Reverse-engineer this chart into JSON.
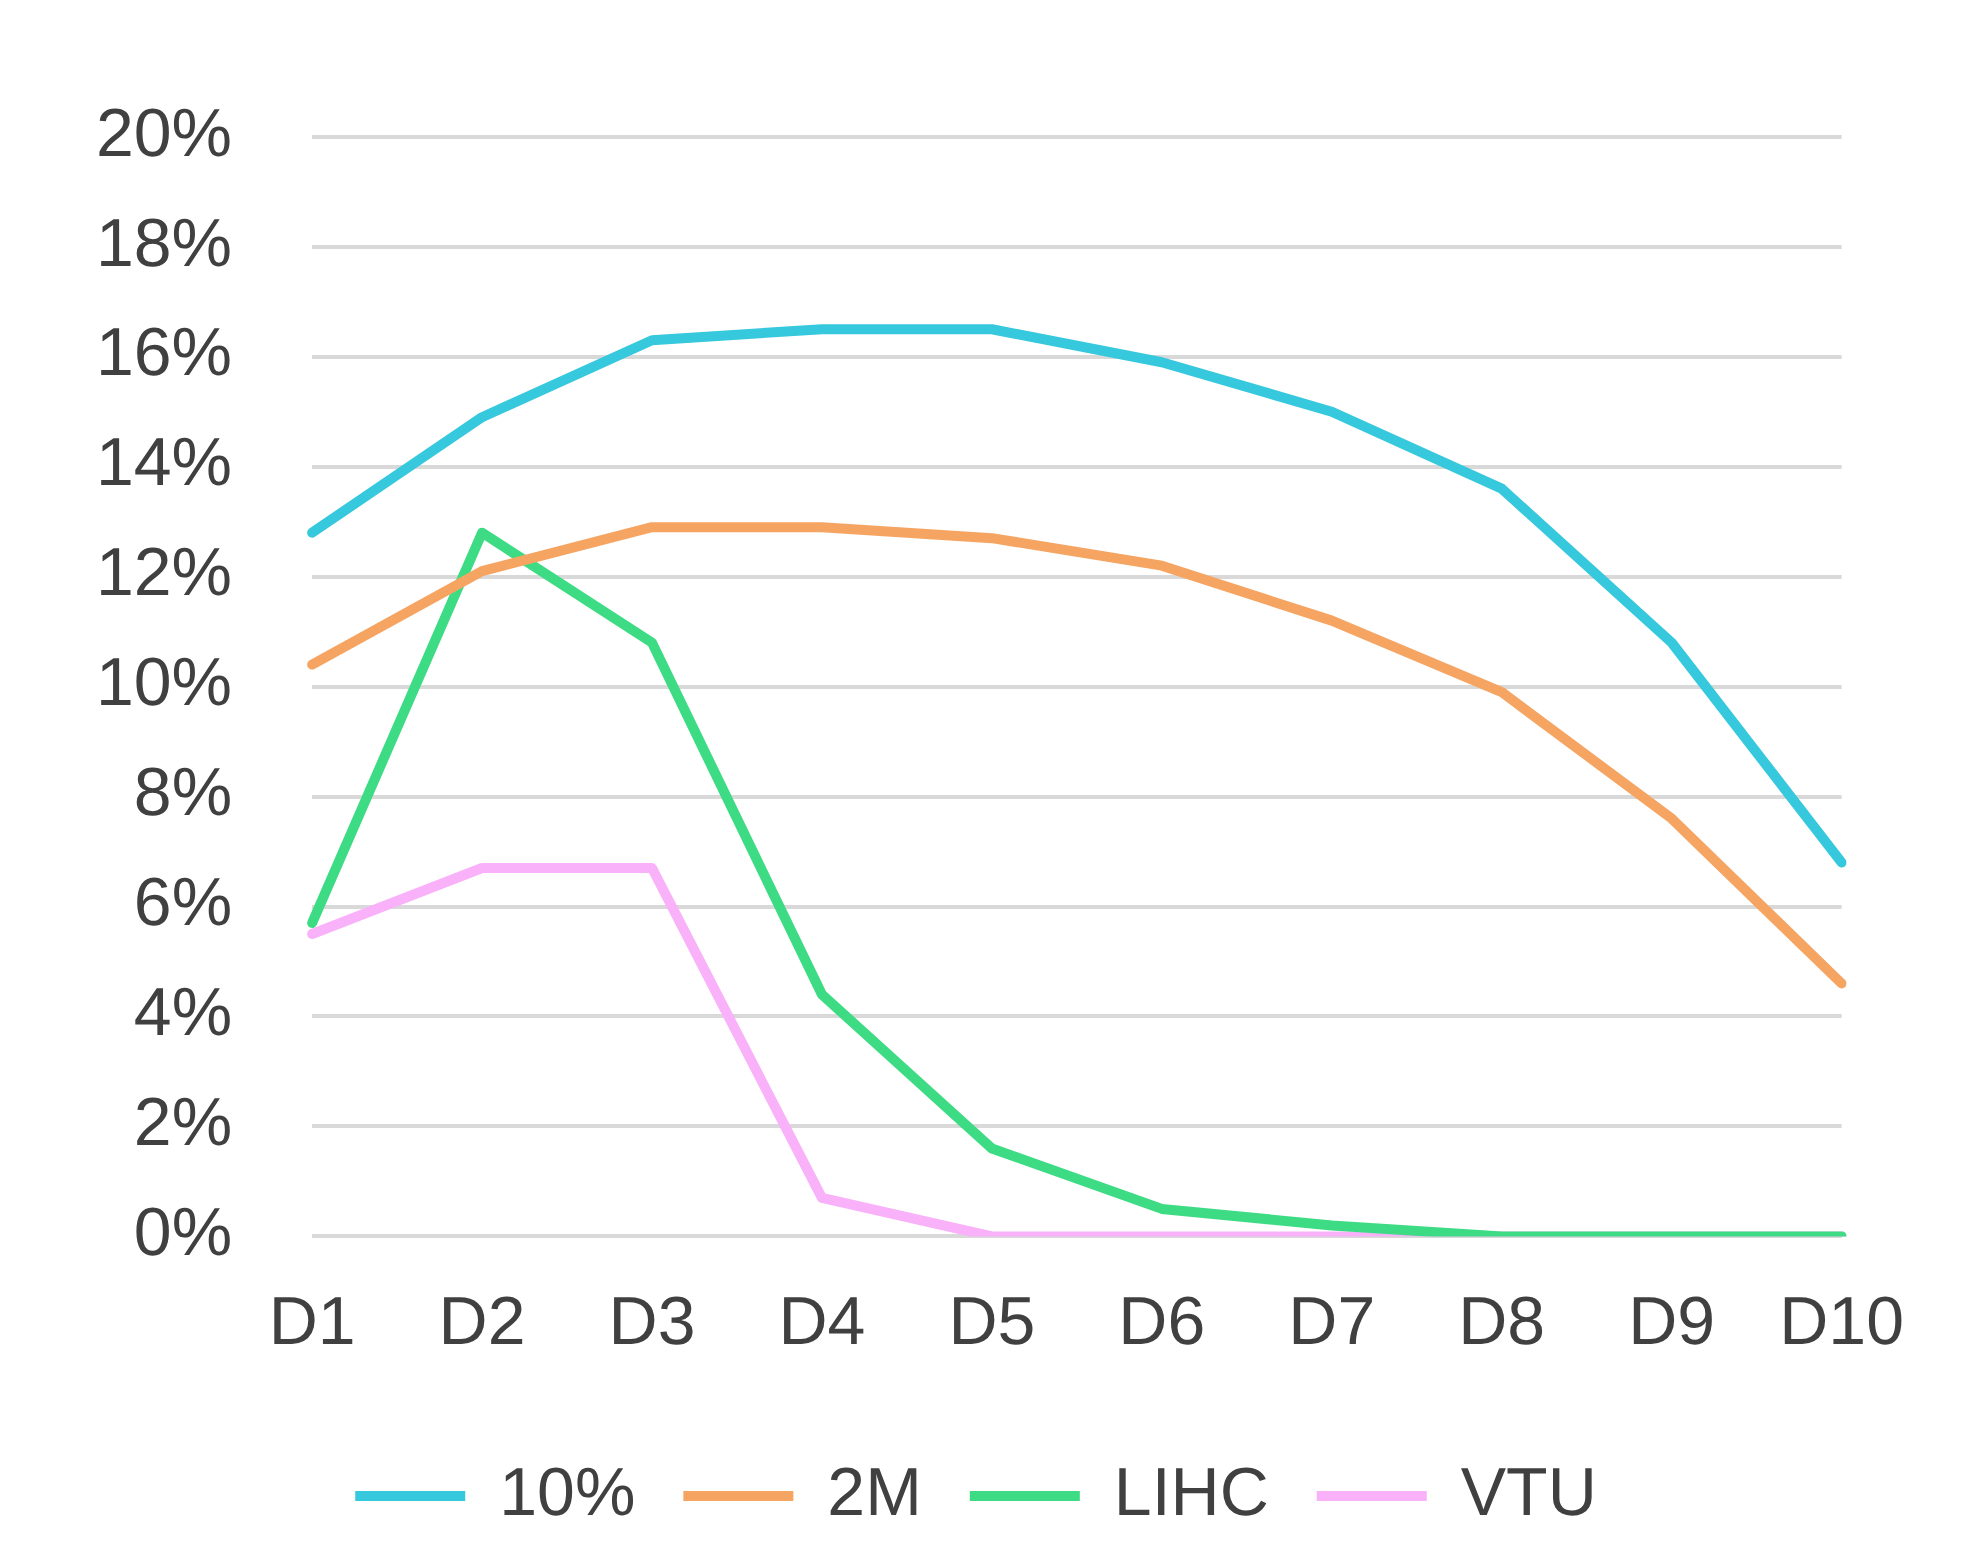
{
  "chart_data": {
    "type": "line",
    "categories": [
      "D1",
      "D2",
      "D3",
      "D4",
      "D5",
      "D6",
      "D7",
      "D8",
      "D9",
      "D10"
    ],
    "series": [
      {
        "name": "10%",
        "color": "#36c8dc",
        "values": [
          12.8,
          14.9,
          16.3,
          16.5,
          16.5,
          15.9,
          15.0,
          13.6,
          10.8,
          6.8
        ]
      },
      {
        "name": "2M",
        "color": "#f5a462",
        "values": [
          10.4,
          12.1,
          12.9,
          12.9,
          12.7,
          12.2,
          11.2,
          9.9,
          7.6,
          4.6
        ]
      },
      {
        "name": "LIHC",
        "color": "#3ddc84",
        "values": [
          5.7,
          12.8,
          10.8,
          4.4,
          1.6,
          0.5,
          0.2,
          0,
          0,
          0
        ]
      },
      {
        "name": "VTU",
        "color": "#f9b1f9",
        "values": [
          5.5,
          6.7,
          6.7,
          0.7,
          0,
          0,
          0,
          0,
          0,
          0
        ]
      }
    ],
    "ylim": [
      0,
      20
    ],
    "yticks": [
      {
        "value": 0,
        "label": "0%"
      },
      {
        "value": 2,
        "label": "2%"
      },
      {
        "value": 4,
        "label": "4%"
      },
      {
        "value": 6,
        "label": "6%"
      },
      {
        "value": 8,
        "label": "8%"
      },
      {
        "value": 10,
        "label": "10%"
      },
      {
        "value": 12,
        "label": "12%"
      },
      {
        "value": 14,
        "label": "14%"
      },
      {
        "value": 16,
        "label": "16%"
      },
      {
        "value": 18,
        "label": "18%"
      },
      {
        "value": 20,
        "label": "20%"
      }
    ],
    "grid": "y",
    "legend": "bottom",
    "marker": "none",
    "line_style": "solid"
  }
}
